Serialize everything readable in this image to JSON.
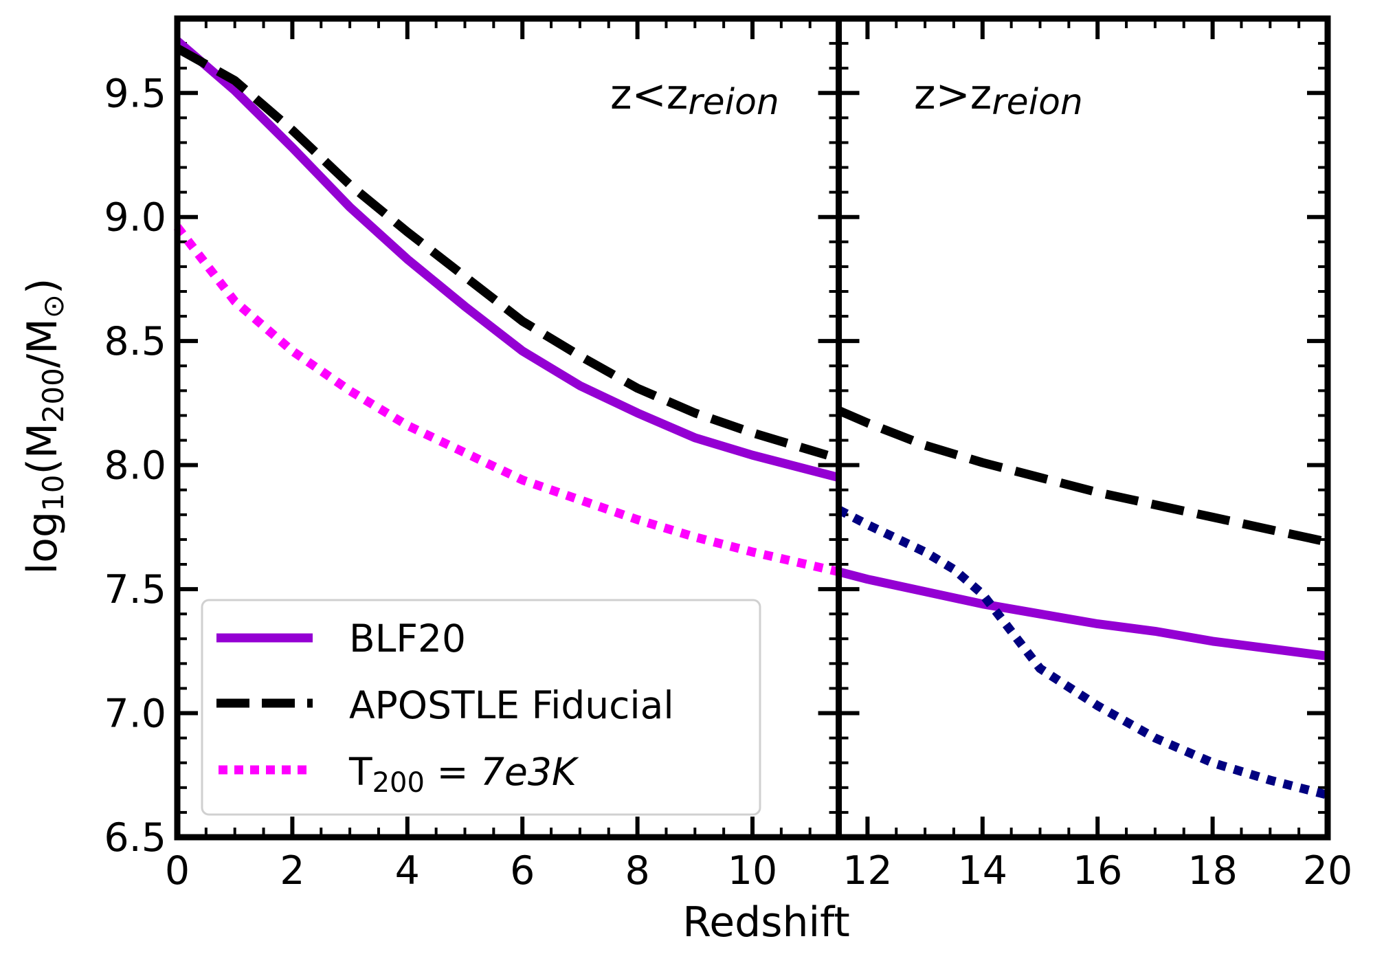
{
  "chart_data": {
    "type": "line",
    "xlabel": "Redshift",
    "ylabel": {
      "prefix": "log",
      "sub1": "10",
      "mid": "(M",
      "sub2": "200",
      "mid2": "/M",
      "sub3": "⊙",
      "suffix": ")"
    },
    "xlim": [
      0,
      20
    ],
    "ylim": [
      6.5,
      9.8
    ],
    "split_x": 11.5,
    "x_ticks": [
      "0",
      "2",
      "4",
      "6",
      "8",
      "10",
      "12",
      "14",
      "16",
      "18",
      "20"
    ],
    "y_ticks": [
      "6.5",
      "7.0",
      "7.5",
      "8.0",
      "8.5",
      "9.0",
      "9.5"
    ],
    "panel_labels": [
      {
        "text": "z<z",
        "sub": "reion",
        "side": "left"
      },
      {
        "text": "z>z",
        "sub": "reion",
        "side": "right"
      }
    ],
    "legend": {
      "placement": "lower-left",
      "entries": [
        {
          "label": "BLF20",
          "series": "BLF20"
        },
        {
          "label": "APOSTLE Fiducial",
          "series": "APOSTLE Fiducial"
        },
        {
          "label": "T",
          "sub": "200",
          "eq": " = ",
          "italic": "7e3K",
          "series": "T200 = 7e3K"
        }
      ]
    },
    "series": [
      {
        "name": "BLF20",
        "color": "#9400d3",
        "style": "solid",
        "x": [
          0,
          1,
          2,
          3,
          4,
          5,
          6,
          7,
          8,
          9,
          10,
          11.5
        ],
        "y": [
          9.71,
          9.51,
          9.28,
          9.04,
          8.83,
          8.64,
          8.46,
          8.32,
          8.21,
          8.11,
          8.04,
          7.95
        ]
      },
      {
        "name": "APOSTLE Fiducial",
        "color": "#000000",
        "style": "dashed",
        "x": [
          0,
          1,
          2,
          3,
          4,
          5,
          6,
          7,
          8,
          9,
          10,
          11.3
        ],
        "y": [
          9.68,
          9.55,
          9.35,
          9.13,
          8.94,
          8.76,
          8.58,
          8.44,
          8.31,
          8.21,
          8.13,
          8.04
        ]
      },
      {
        "name": "T200 = 7e3K",
        "color": "#ff00ff",
        "style": "dotted",
        "x": [
          0,
          1,
          2,
          3,
          4,
          5,
          6,
          7,
          8,
          9,
          10,
          11.5
        ],
        "y": [
          8.96,
          8.66,
          8.46,
          8.3,
          8.16,
          8.05,
          7.94,
          7.86,
          7.78,
          7.71,
          7.65,
          7.57
        ]
      },
      {
        "name": "BLF20 (z>z_reion)",
        "color": "#9400d3",
        "style": "solid",
        "x": [
          11.5,
          12,
          13,
          14,
          15,
          16,
          17,
          18,
          19,
          20
        ],
        "y": [
          7.57,
          7.54,
          7.49,
          7.44,
          7.4,
          7.36,
          7.33,
          7.29,
          7.26,
          7.23
        ]
      },
      {
        "name": "APOSTLE Fiducial (z>z_reion)",
        "color": "#000000",
        "style": "dashed",
        "x": [
          11.5,
          12,
          13,
          14,
          15,
          16,
          17,
          18,
          19,
          20
        ],
        "y": [
          8.22,
          8.17,
          8.08,
          8.01,
          7.95,
          7.89,
          7.84,
          7.79,
          7.74,
          7.69
        ]
      },
      {
        "name": "T200 = 7e3K (z>z_reion)",
        "color": "#000080",
        "style": "dotted",
        "x": [
          11.5,
          12,
          13,
          13.5,
          14,
          15,
          16,
          17,
          18,
          19,
          20
        ],
        "y": [
          7.82,
          7.76,
          7.65,
          7.58,
          7.48,
          7.18,
          7.03,
          6.9,
          6.8,
          6.73,
          6.67
        ]
      }
    ]
  }
}
